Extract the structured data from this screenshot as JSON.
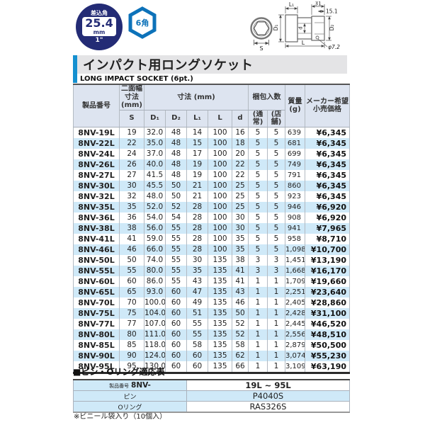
{
  "badge": {
    "drive_label": "差込角",
    "size": "25.4",
    "unit": "mm",
    "inch": "1\"",
    "hex": "6角"
  },
  "diagram": {
    "l1": "L₁",
    "len31": "31",
    "len151": "15.1",
    "d1": "D₁",
    "d": "d",
    "d2": "D₂",
    "s": "S",
    "l": "L",
    "phi": "φ7.2"
  },
  "header": {
    "title": "インパクト用ロングソケット",
    "subtitle": "LONG IMPACT SOCKET (6pt.)"
  },
  "table": {
    "headers": {
      "product": "製品番号",
      "width_across_flats": "二面幅\n寸法\n(mm)",
      "dimensions": "寸法 (mm)",
      "packing": "梱包入数",
      "mass": "質量\n(g)",
      "price": "メーカー希望\n小売価格"
    },
    "sub_headers": [
      "S",
      "D₁",
      "D₂",
      "L₁",
      "L",
      "d",
      "(通常)",
      "(店舗)"
    ],
    "rows": [
      [
        "8NV-19L",
        "19",
        "32.0",
        "48",
        "14",
        "100",
        "16",
        "5",
        "5",
        "639",
        "¥6,345"
      ],
      [
        "8NV-22L",
        "22",
        "35.0",
        "48",
        "15",
        "100",
        "18",
        "5",
        "5",
        "681",
        "¥6,345"
      ],
      [
        "8NV-24L",
        "24",
        "37.0",
        "48",
        "17",
        "100",
        "20",
        "5",
        "5",
        "699",
        "¥6,345"
      ],
      [
        "8NV-26L",
        "26",
        "40.0",
        "48",
        "19",
        "100",
        "22",
        "5",
        "5",
        "749",
        "¥6,345"
      ],
      [
        "8NV-27L",
        "27",
        "41.5",
        "48",
        "19",
        "100",
        "22",
        "5",
        "5",
        "791",
        "¥6,345"
      ],
      [
        "8NV-30L",
        "30",
        "45.5",
        "50",
        "21",
        "100",
        "25",
        "5",
        "5",
        "860",
        "¥6,345"
      ],
      [
        "8NV-32L",
        "32",
        "48.0",
        "50",
        "21",
        "100",
        "25",
        "5",
        "5",
        "923",
        "¥6,345"
      ],
      [
        "8NV-35L",
        "35",
        "52.0",
        "52",
        "28",
        "100",
        "25",
        "5",
        "5",
        "946",
        "¥6,920"
      ],
      [
        "8NV-36L",
        "36",
        "54.0",
        "54",
        "28",
        "100",
        "30",
        "5",
        "5",
        "908",
        "¥6,920"
      ],
      [
        "8NV-38L",
        "38",
        "56.0",
        "55",
        "28",
        "100",
        "30",
        "5",
        "5",
        "941",
        "¥7,965"
      ],
      [
        "8NV-41L",
        "41",
        "59.0",
        "55",
        "28",
        "100",
        "35",
        "5",
        "5",
        "958",
        "¥8,710"
      ],
      [
        "8NV-46L",
        "46",
        "66.0",
        "55",
        "28",
        "100",
        "35",
        "5",
        "5",
        "1,098",
        "¥10,700"
      ],
      [
        "8NV-50L",
        "50",
        "74.0",
        "55",
        "30",
        "135",
        "38",
        "3",
        "3",
        "1,451",
        "¥13,190"
      ],
      [
        "8NV-55L",
        "55",
        "80.0",
        "55",
        "35",
        "135",
        "41",
        "3",
        "3",
        "1,668",
        "¥16,170"
      ],
      [
        "8NV-60L",
        "60",
        "86.0",
        "55",
        "43",
        "135",
        "41",
        "1",
        "1",
        "1,709",
        "¥19,660"
      ],
      [
        "8NV-65L",
        "65",
        "93.0",
        "60",
        "47",
        "135",
        "43",
        "1",
        "1",
        "2,251",
        "¥23,640"
      ],
      [
        "8NV-70L",
        "70",
        "100.0",
        "60",
        "49",
        "135",
        "46",
        "1",
        "1",
        "2,405",
        "¥28,860"
      ],
      [
        "8NV-75L",
        "75",
        "104.0",
        "60",
        "51",
        "135",
        "50",
        "1",
        "1",
        "2,428",
        "¥31,100"
      ],
      [
        "8NV-77L",
        "77",
        "107.0",
        "60",
        "55",
        "135",
        "52",
        "1",
        "1",
        "2,445",
        "¥46,520"
      ],
      [
        "8NV-80L",
        "80",
        "111.0",
        "60",
        "55",
        "135",
        "52",
        "1",
        "1",
        "2,556",
        "¥48,510"
      ],
      [
        "8NV-85L",
        "85",
        "118.0",
        "60",
        "58",
        "135",
        "58",
        "1",
        "1",
        "2,879",
        "¥50,500"
      ],
      [
        "8NV-90L",
        "90",
        "124.0",
        "60",
        "60",
        "135",
        "62",
        "1",
        "1",
        "3,074",
        "¥55,230"
      ],
      [
        "8NV-95L",
        "95",
        "130.0",
        "60",
        "60",
        "135",
        "66",
        "1",
        "1",
        "3,109",
        "¥63,190"
      ]
    ]
  },
  "pin_section": {
    "title": "■ピン・Oリング適応表",
    "rows": [
      {
        "label_small": "製品番号",
        "label_bold": "8NV-",
        "value": "19L ~ 95L"
      },
      {
        "label": "ピン",
        "value": "P4040S"
      },
      {
        "label": "Oリング",
        "value": "RAS326S"
      }
    ],
    "note": "※ビニール袋入り（10個入）"
  },
  "colors": {
    "navy": "#232b75",
    "hex_badge_blue": "#0d72b9",
    "accent_bar_blue": "#1590d0",
    "row_stripe_blue": "#cfe9f8",
    "header_bg": "#dde4f0",
    "title_band_gray": "#e4e4e6"
  }
}
